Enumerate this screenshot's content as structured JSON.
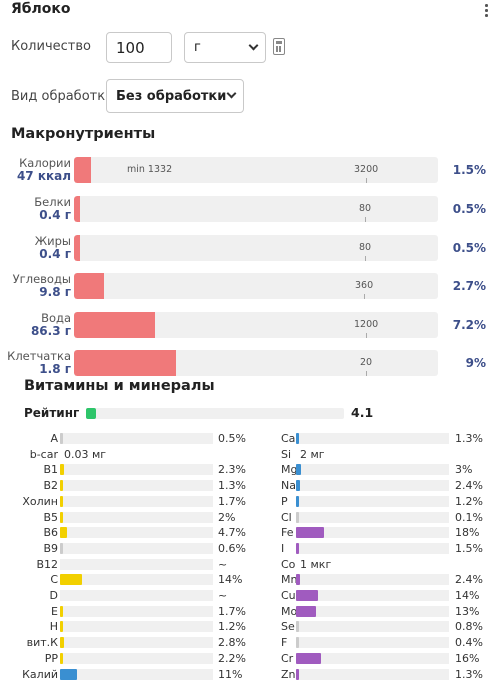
{
  "header": {
    "title": "Яблоко"
  },
  "form": {
    "quantity_label": "Количество",
    "quantity_value": "100",
    "unit_value": "г",
    "processing_label": "Вид обработки",
    "processing_value": "Без обработки"
  },
  "macros": {
    "heading": "Макронутриенты",
    "min_label": "min 1332",
    "items": [
      {
        "name": "Калории",
        "value": "47 ккал",
        "norm": "3200",
        "percent": "1.5%",
        "fill_fraction": 0.015
      },
      {
        "name": "Белки",
        "value": "0.4 г",
        "norm": "80",
        "percent": "0.5%",
        "fill_fraction": 0.005
      },
      {
        "name": "Жиры",
        "value": "0.4 г",
        "norm": "80",
        "percent": "0.5%",
        "fill_fraction": 0.005
      },
      {
        "name": "Углеводы",
        "value": "9.8 г",
        "norm": "360",
        "percent": "2.7%",
        "fill_fraction": 0.027
      },
      {
        "name": "Вода",
        "value": "86.3 г",
        "norm": "1200",
        "percent": "7.2%",
        "fill_fraction": 0.072
      },
      {
        "name": "Клетчатка",
        "value": "1.8 г",
        "norm": "20",
        "percent": "9%",
        "fill_fraction": 0.09
      }
    ]
  },
  "vitamins": {
    "heading": "Витамины и минералы",
    "rating_label": "Рейтинг",
    "rating_value": "4.1",
    "colors": {
      "vitamin": "#f2d000",
      "mineral": "#a05bbf",
      "blue": "#3a8fd1",
      "gray": "#cccccc"
    },
    "left": [
      {
        "name": "A",
        "percent": "0.5%",
        "fill": 0.005,
        "color": "gray"
      },
      {
        "name": "b-car",
        "text": "0.03 мг"
      },
      {
        "name": "B1",
        "percent": "2.3%",
        "fill": 0.023,
        "color": "vitamin"
      },
      {
        "name": "B2",
        "percent": "1.3%",
        "fill": 0.013,
        "color": "vitamin"
      },
      {
        "name": "Холин",
        "percent": "1.7%",
        "fill": 0.017,
        "color": "vitamin"
      },
      {
        "name": "B5",
        "percent": "2%",
        "fill": 0.02,
        "color": "vitamin"
      },
      {
        "name": "B6",
        "percent": "4.7%",
        "fill": 0.047,
        "color": "vitamin"
      },
      {
        "name": "B9",
        "percent": "0.6%",
        "fill": 0.006,
        "color": "gray"
      },
      {
        "name": "B12",
        "percent": "~",
        "fill": 0,
        "color": "gray"
      },
      {
        "name": "C",
        "percent": "14%",
        "fill": 0.14,
        "color": "vitamin"
      },
      {
        "name": "D",
        "percent": "~",
        "fill": 0,
        "color": "gray"
      },
      {
        "name": "E",
        "percent": "1.7%",
        "fill": 0.017,
        "color": "vitamin"
      },
      {
        "name": "H",
        "percent": "1.2%",
        "fill": 0.012,
        "color": "vitamin"
      },
      {
        "name": "вит.К",
        "percent": "2.8%",
        "fill": 0.028,
        "color": "vitamin"
      },
      {
        "name": "PP",
        "percent": "2.2%",
        "fill": 0.022,
        "color": "vitamin"
      },
      {
        "name": "Калий",
        "percent": "11%",
        "fill": 0.11,
        "color": "blue"
      }
    ],
    "right": [
      {
        "name": "Ca",
        "percent": "1.3%",
        "fill": 0.013,
        "color": "blue"
      },
      {
        "name": "Si",
        "text": "2 мг"
      },
      {
        "name": "Mg",
        "percent": "3%",
        "fill": 0.03,
        "color": "blue"
      },
      {
        "name": "Na",
        "percent": "2.4%",
        "fill": 0.024,
        "color": "blue"
      },
      {
        "name": "P",
        "percent": "1.2%",
        "fill": 0.012,
        "color": "blue"
      },
      {
        "name": "Cl",
        "percent": "0.1%",
        "fill": 0.001,
        "color": "gray"
      },
      {
        "name": "Fe",
        "percent": "18%",
        "fill": 0.18,
        "color": "mineral"
      },
      {
        "name": "I",
        "percent": "1.5%",
        "fill": 0.015,
        "color": "mineral"
      },
      {
        "name": "Co",
        "text": "1 мкг"
      },
      {
        "name": "Mn",
        "percent": "2.4%",
        "fill": 0.024,
        "color": "mineral"
      },
      {
        "name": "Cu",
        "percent": "14%",
        "fill": 0.14,
        "color": "mineral"
      },
      {
        "name": "Mo",
        "percent": "13%",
        "fill": 0.13,
        "color": "mineral"
      },
      {
        "name": "Se",
        "percent": "0.8%",
        "fill": 0.008,
        "color": "gray"
      },
      {
        "name": "F",
        "percent": "0.4%",
        "fill": 0.004,
        "color": "gray"
      },
      {
        "name": "Cr",
        "percent": "16%",
        "fill": 0.16,
        "color": "mineral"
      },
      {
        "name": "Zn",
        "percent": "1.3%",
        "fill": 0.013,
        "color": "mineral"
      }
    ]
  }
}
